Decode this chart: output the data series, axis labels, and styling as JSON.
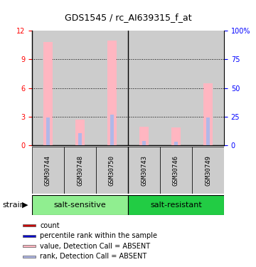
{
  "title": "GDS1545 / rc_AI639315_f_at",
  "samples": [
    "GSM30744",
    "GSM30748",
    "GSM30750",
    "GSM30743",
    "GSM30746",
    "GSM30749"
  ],
  "bar_bg_color": "#cccccc",
  "ylim_left": [
    0,
    12
  ],
  "ylim_right": [
    0,
    100
  ],
  "yticks_left": [
    0,
    3,
    6,
    9,
    12
  ],
  "yticks_right": [
    0,
    25,
    50,
    75,
    100
  ],
  "value_absent": [
    10.8,
    2.7,
    11.0,
    2.0,
    1.9,
    6.5
  ],
  "rank_absent": [
    2.9,
    1.3,
    3.2,
    0.5,
    0.4,
    2.9
  ],
  "color_value_absent": "#ffb6c1",
  "color_rank_absent": "#b0b8e8",
  "color_count": "#cc0000",
  "color_rank": "#0000cc",
  "group_labels": [
    "salt-sensitive",
    "salt-resistant"
  ],
  "group_color_light": "#90ee90",
  "group_color_dark": "#22cc44",
  "legend_items": [
    {
      "label": "count",
      "color": "#cc0000"
    },
    {
      "label": "percentile rank within the sample",
      "color": "#0000cc"
    },
    {
      "label": "value, Detection Call = ABSENT",
      "color": "#ffb6c1"
    },
    {
      "label": "rank, Detection Call = ABSENT",
      "color": "#b0b8e8"
    }
  ]
}
